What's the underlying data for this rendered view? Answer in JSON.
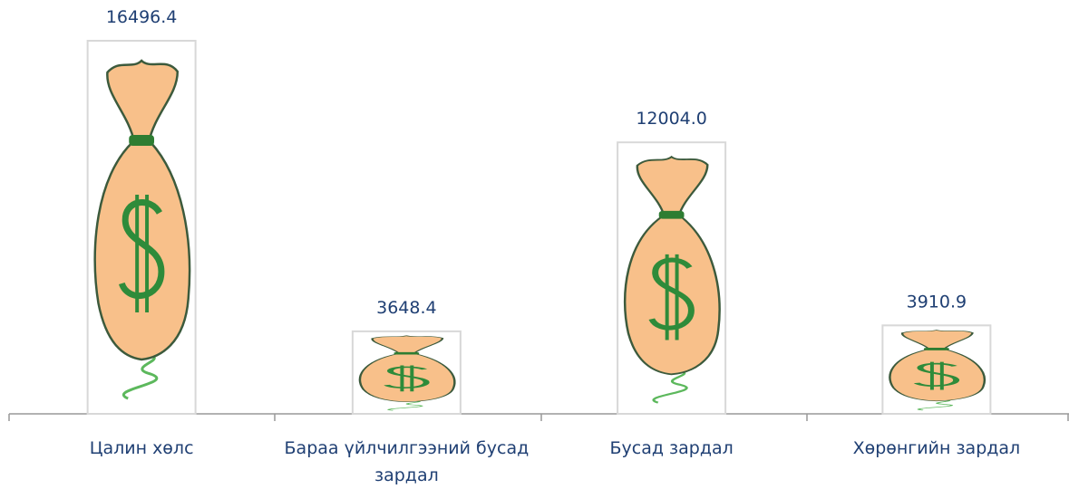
{
  "chart_data": {
    "type": "bar",
    "categories": [
      "Цалин хөлс",
      "Бараа үйлчилгээний бусад зардал",
      "Бусад зардал",
      "Хөрөнгийн зардал"
    ],
    "values": [
      16496.4,
      3648.4,
      12004.0,
      3910.9
    ],
    "value_labels": [
      "16496.4",
      "3648.4",
      "12004.0",
      "3910.9"
    ]
  }
}
